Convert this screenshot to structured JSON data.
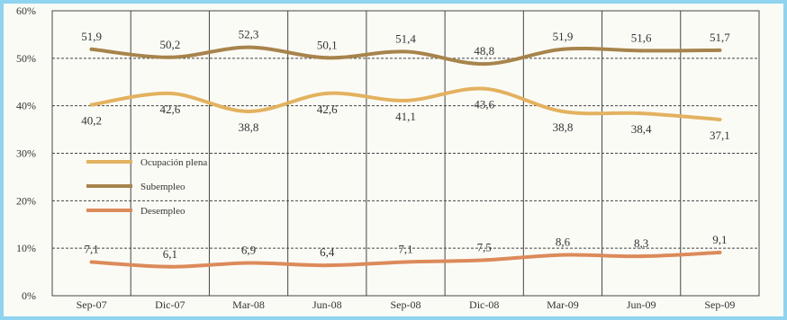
{
  "chart_data": {
    "type": "line",
    "title": "",
    "xlabel": "",
    "ylabel": "",
    "ylim": [
      0,
      60
    ],
    "grid": true,
    "legend_position": "center-left",
    "categories": [
      "Sep-07",
      "Dic-07",
      "Mar-08",
      "Jun-08",
      "Sep-08",
      "Dic-08",
      "Mar-09",
      "Jun-09",
      "Sep-09"
    ],
    "yticks": [
      "0%",
      "10%",
      "20%",
      "30%",
      "40%",
      "50%",
      "60%"
    ],
    "series": [
      {
        "name": "Ocupación plena",
        "color": "#e3b25f",
        "values": [
          40.2,
          42.6,
          38.8,
          42.6,
          41.1,
          43.6,
          38.8,
          38.4,
          37.1
        ],
        "labels": [
          "40,2",
          "42,6",
          "38,8",
          "42,6",
          "41,1",
          "43,6",
          "38,8",
          "38,4",
          "37,1"
        ]
      },
      {
        "name": "Subempleo",
        "color": "#a7844c",
        "values": [
          51.9,
          50.2,
          52.3,
          50.1,
          51.4,
          48.8,
          51.9,
          51.6,
          51.7
        ],
        "labels": [
          "51,9",
          "50,2",
          "52,3",
          "50,1",
          "51,4",
          "48,8",
          "51,9",
          "51,6",
          "51,7"
        ]
      },
      {
        "name": "Desempleo",
        "color": "#dc8a5a",
        "values": [
          7.1,
          6.1,
          6.9,
          6.4,
          7.1,
          7.5,
          8.6,
          8.3,
          9.1
        ],
        "labels": [
          "7,1",
          "6,1",
          "6,9",
          "6,4",
          "7,1",
          "7,5",
          "8,6",
          "8,3",
          "9,1"
        ]
      }
    ]
  }
}
